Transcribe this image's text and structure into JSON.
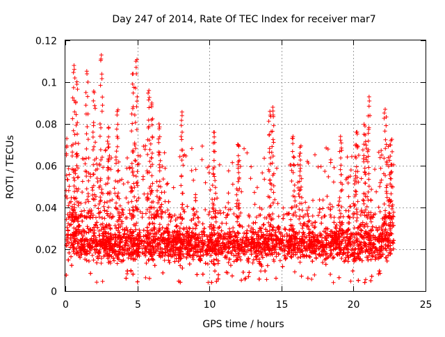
{
  "chart_data": {
    "type": "scatter",
    "title": "Day 247 of 2014, Rate Of TEC Index for receiver mar7",
    "xlabel": "GPS time / hours",
    "ylabel": "ROTI / TECUs",
    "xlim": [
      0,
      25
    ],
    "ylim": [
      0,
      0.12
    ],
    "x_ticks": [
      0,
      5,
      10,
      15,
      20,
      25
    ],
    "x_tick_labels": [
      "0",
      "5",
      "10",
      "15",
      "20",
      "25"
    ],
    "y_ticks": [
      0,
      0.02,
      0.04,
      0.06,
      0.08,
      0.1,
      0.12
    ],
    "y_tick_labels": [
      "0",
      "0.02",
      "0.04",
      "0.06",
      "0.08",
      "0.1",
      "0.12"
    ],
    "grid": true,
    "marker": "+",
    "series_color": "#ff0000",
    "series": [
      {
        "name": "ROTI",
        "x_range_hours": [
          0,
          22.8
        ],
        "typical_band": [
          0.01,
          0.035
        ],
        "min": 0.004,
        "max": 0.113,
        "notable_peaks": [
          {
            "x": 0.1,
            "y": 0.073
          },
          {
            "x": 0.6,
            "y": 0.108
          },
          {
            "x": 0.8,
            "y": 0.099
          },
          {
            "x": 1.5,
            "y": 0.104
          },
          {
            "x": 2.0,
            "y": 0.095
          },
          {
            "x": 2.5,
            "y": 0.113
          },
          {
            "x": 3.0,
            "y": 0.078
          },
          {
            "x": 3.6,
            "y": 0.086
          },
          {
            "x": 4.7,
            "y": 0.104
          },
          {
            "x": 4.9,
            "y": 0.11
          },
          {
            "x": 5.8,
            "y": 0.096
          },
          {
            "x": 6.0,
            "y": 0.09
          },
          {
            "x": 6.5,
            "y": 0.08
          },
          {
            "x": 8.1,
            "y": 0.084
          },
          {
            "x": 10.3,
            "y": 0.076
          },
          {
            "x": 12.0,
            "y": 0.07
          },
          {
            "x": 14.2,
            "y": 0.086
          },
          {
            "x": 14.4,
            "y": 0.088
          },
          {
            "x": 15.8,
            "y": 0.074
          },
          {
            "x": 16.3,
            "y": 0.066
          },
          {
            "x": 19.1,
            "y": 0.074
          },
          {
            "x": 20.2,
            "y": 0.076
          },
          {
            "x": 20.8,
            "y": 0.079
          },
          {
            "x": 21.1,
            "y": 0.091
          },
          {
            "x": 22.2,
            "y": 0.087
          },
          {
            "x": 22.6,
            "y": 0.072
          }
        ]
      }
    ]
  }
}
